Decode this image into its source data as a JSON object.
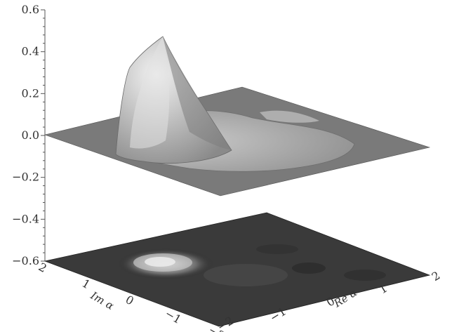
{
  "chart_data": {
    "type": "surface3d",
    "title": "",
    "z_axis": {
      "range": [
        -0.6,
        0.6
      ],
      "ticks": [
        {
          "value": 0.6,
          "label": "0.6"
        },
        {
          "value": 0.4,
          "label": "0.4"
        },
        {
          "value": 0.2,
          "label": "0.2"
        },
        {
          "value": 0.0,
          "label": "0.0"
        },
        {
          "value": -0.2,
          "label": "-0.2"
        },
        {
          "value": -0.4,
          "label": "-0.4"
        },
        {
          "value": -0.6,
          "label": "-0.6"
        }
      ]
    },
    "x_axis": {
      "label": "Re α",
      "range": [
        -2,
        2
      ],
      "ticks": [
        {
          "value": -2,
          "label": "-2"
        },
        {
          "value": -1,
          "label": "-1"
        },
        {
          "value": 0,
          "label": "0"
        },
        {
          "value": 1,
          "label": "1"
        },
        {
          "value": 2,
          "label": "2"
        }
      ]
    },
    "y_axis": {
      "label": "Im α",
      "range": [
        -2,
        2
      ],
      "ticks": [
        {
          "value": 2,
          "label": "2"
        },
        {
          "value": 1,
          "label": "1"
        },
        {
          "value": 0,
          "label": "0"
        },
        {
          "value": -1,
          "label": "-1"
        },
        {
          "value": -2,
          "label": "-2"
        }
      ]
    },
    "surface": {
      "peak": {
        "re": -1.2,
        "im": 0.5,
        "value": 0.42
      },
      "baseline": 0.0,
      "min_value": -0.05
    },
    "contour_plane_z": -0.6
  }
}
